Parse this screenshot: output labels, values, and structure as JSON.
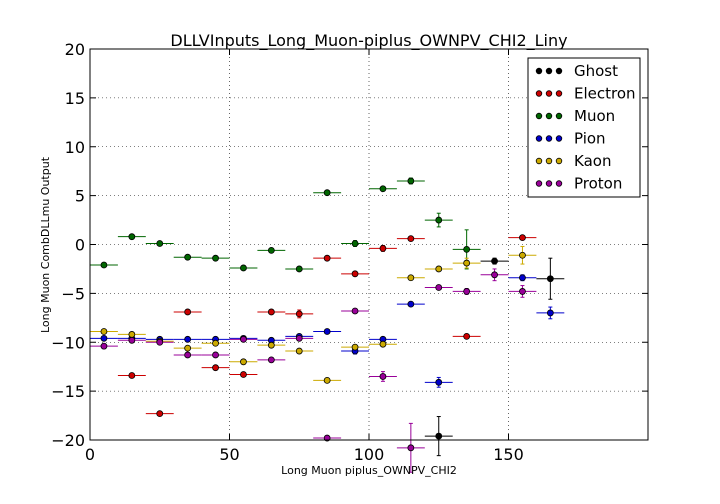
{
  "chart_data": {
    "type": "scatter",
    "title": "DLLVInputs_Long_Muon-piplus_OWNPV_CHI2_Liny",
    "xlabel": "Long Muon piplus_OWNPV_CHI2",
    "ylabel": "Long Muon CombDLLmu Output",
    "xlim": [
      0,
      200
    ],
    "ylim": [
      -20,
      20
    ],
    "xticks": [
      "0",
      "50",
      "100",
      "150"
    ],
    "yticks": [
      "20",
      "15",
      "10",
      "5",
      "0",
      "−5",
      "−10",
      "−15",
      "−20"
    ],
    "grid": true,
    "legend_position": "top-right",
    "x_bin_halfwidth": 5,
    "series": [
      {
        "name": "Ghost",
        "color": "#000000",
        "x": [
          125,
          145,
          165
        ],
        "y": [
          -19.6,
          -1.7,
          -3.5
        ],
        "yerr": [
          2.0,
          0.3,
          2.1
        ]
      },
      {
        "name": "Electron",
        "color": "#cc0000",
        "x": [
          15,
          25,
          35,
          45,
          55,
          65,
          75,
          85,
          95,
          105,
          115,
          135,
          155
        ],
        "y": [
          -13.4,
          -17.3,
          -6.9,
          -12.6,
          -13.3,
          -6.9,
          -7.1,
          -1.4,
          -3.0,
          -0.4,
          0.6,
          -9.4,
          0.7
        ],
        "yerr": [
          0,
          0,
          0,
          0,
          0,
          0,
          0.4,
          0,
          0,
          0.3,
          0,
          0,
          0
        ]
      },
      {
        "name": "Muon",
        "color": "#006600",
        "x": [
          5,
          15,
          25,
          35,
          45,
          55,
          65,
          75,
          85,
          95,
          105,
          115,
          125,
          135
        ],
        "y": [
          -2.1,
          0.8,
          0.1,
          -1.3,
          -1.4,
          -2.4,
          -0.6,
          -2.5,
          5.3,
          0.1,
          5.7,
          6.5,
          2.5,
          -0.5
        ],
        "yerr": [
          0,
          0,
          0,
          0,
          0,
          0,
          0,
          0,
          0,
          0.3,
          0,
          0.3,
          0.7,
          2.0
        ]
      },
      {
        "name": "Pion",
        "color": "#0000cc",
        "x": [
          5,
          15,
          25,
          35,
          45,
          55,
          65,
          75,
          85,
          95,
          105,
          115,
          125,
          155,
          165
        ],
        "y": [
          -9.6,
          -9.6,
          -9.7,
          -9.7,
          -9.7,
          -9.6,
          -9.8,
          -9.4,
          -8.9,
          -10.9,
          -9.7,
          -6.1,
          -14.1,
          -3.4,
          -7.0
        ],
        "yerr": [
          0,
          0,
          0,
          0,
          0,
          0,
          0,
          0,
          0,
          0.3,
          0,
          0,
          0.5,
          0.3,
          0.6
        ]
      },
      {
        "name": "Kaon",
        "color": "#ccaa00",
        "x": [
          5,
          15,
          25,
          35,
          45,
          55,
          65,
          75,
          85,
          95,
          105,
          115,
          125,
          135,
          155
        ],
        "y": [
          -8.9,
          -9.2,
          -9.9,
          -10.6,
          -10.1,
          -12.0,
          -10.3,
          -10.9,
          -13.9,
          -10.5,
          -10.2,
          -3.4,
          -2.5,
          -1.9,
          -1.1
        ],
        "yerr": [
          0,
          0,
          0,
          0,
          0,
          0,
          0,
          0,
          0,
          0,
          0,
          0,
          0,
          0.5,
          0.9
        ]
      },
      {
        "name": "Proton",
        "color": "#990099",
        "x": [
          5,
          15,
          25,
          35,
          45,
          55,
          65,
          75,
          85,
          95,
          105,
          115,
          125,
          135,
          145,
          155
        ],
        "y": [
          -10.4,
          -9.8,
          -10.0,
          -11.3,
          -11.3,
          -9.7,
          -11.8,
          -9.6,
          -19.8,
          -6.8,
          -13.5,
          -20.8,
          -4.4,
          -4.8,
          -3.1,
          -4.8
        ],
        "yerr": [
          0,
          0,
          0,
          0,
          0,
          0,
          0,
          0,
          0,
          0,
          0.5,
          2.5,
          0,
          0.3,
          0.6,
          0.6
        ]
      }
    ]
  }
}
